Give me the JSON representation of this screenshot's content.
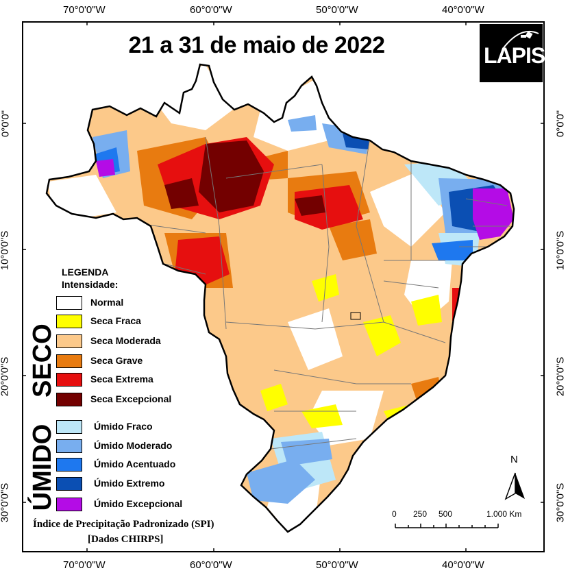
{
  "title": "21 a 31 de maio de 2022",
  "logo_text": "LAPIS",
  "longitude_labels": [
    "70°0'0\"W",
    "60°0'0\"W",
    "50°0'0\"W",
    "40°0'0\"W"
  ],
  "latitude_labels": [
    "0°0'0\"",
    "10°0'0\"S",
    "20°0'0\"S",
    "30°0'0\"S"
  ],
  "legend": {
    "heading": "LEGENDA",
    "subheading": "Intensidade:",
    "dry_group": "SECO",
    "wet_group": "ÚMIDO",
    "categories": [
      {
        "label": "Normal",
        "color": "#ffffff"
      },
      {
        "label": "Seca Fraca",
        "color": "#ffff00"
      },
      {
        "label": "Seca Moderada",
        "color": "#fcc98a"
      },
      {
        "label": "Seca Grave",
        "color": "#e87b10"
      },
      {
        "label": "Seca Extrema",
        "color": "#e60f0f"
      },
      {
        "label": "Seca Excepcional",
        "color": "#730000"
      },
      {
        "label": "Úmido Fraco",
        "color": "#bde7f8"
      },
      {
        "label": "Úmido Moderado",
        "color": "#78aeef"
      },
      {
        "label": "Úmido Acentuado",
        "color": "#1e78ef"
      },
      {
        "label": "Úmido Extremo",
        "color": "#0b4fb3"
      },
      {
        "label": "Úmido Excepcional",
        "color": "#b40ce6"
      }
    ]
  },
  "source_line1": "Índice de Precipitação Padronizado (SPI)",
  "source_line2": "[Dados CHIRPS]",
  "north_label": "N",
  "scale_labels": [
    "0",
    "250",
    "500",
    "1.000 Km"
  ]
}
